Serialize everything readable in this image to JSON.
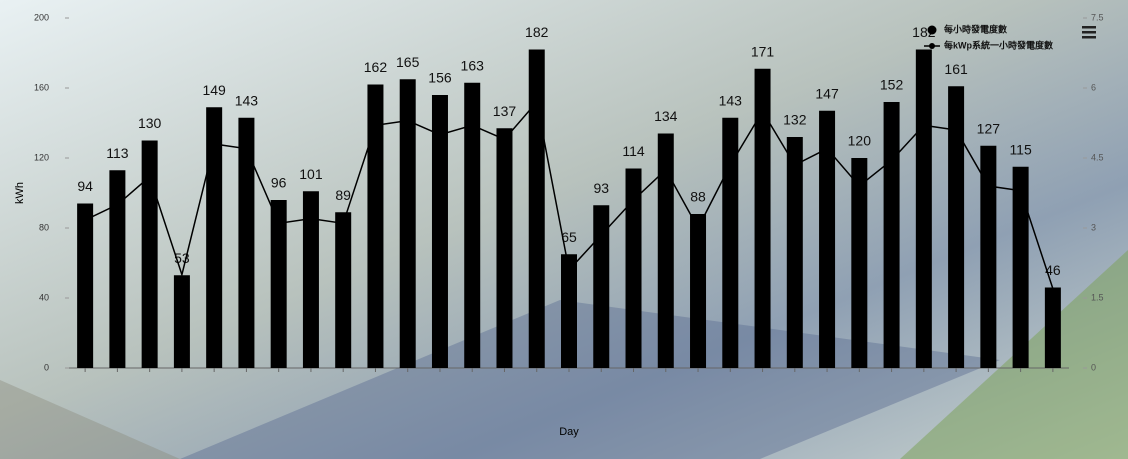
{
  "chart_data": {
    "type": "bar",
    "x_label": "Day",
    "y_label": "kWh",
    "categories": [
      null,
      null,
      null,
      null,
      null,
      null,
      null,
      null,
      null,
      null,
      null,
      null,
      null,
      null,
      null,
      null,
      null,
      null,
      null,
      null,
      null,
      null,
      null,
      null,
      null,
      null,
      null,
      null,
      null,
      null,
      null
    ],
    "series": [
      {
        "name": "每小時發電度數",
        "type": "bar",
        "color": "#000000",
        "values": [
          94,
          113,
          130,
          53,
          149,
          143,
          96,
          101,
          89,
          162,
          165,
          156,
          163,
          137,
          182,
          65,
          93,
          114,
          134,
          88,
          143,
          171,
          132,
          147,
          120,
          152,
          182,
          161,
          127,
          115,
          46
        ]
      },
      {
        "name": "每kWp系統一小時發電度數",
        "type": "line",
        "axis": "y2",
        "color": "#000000",
        "values": [
          3.17,
          3.5,
          4.1,
          2.0,
          4.8,
          4.7,
          3.1,
          3.2,
          3.1,
          5.2,
          5.3,
          5.0,
          5.2,
          4.9,
          5.7,
          2.1,
          2.85,
          3.6,
          4.25,
          3.0,
          4.35,
          5.5,
          4.35,
          4.7,
          3.9,
          4.45,
          5.2,
          5.1,
          3.9,
          3.8,
          1.7
        ]
      }
    ],
    "ylim": [
      0,
      200
    ],
    "yticks": [
      0,
      40,
      80,
      120,
      160,
      200
    ],
    "y2lim": [
      0,
      7.5
    ],
    "y2ticks": [
      0,
      1.5,
      3,
      4.5,
      6,
      7.5
    ],
    "legend": "top-right"
  }
}
